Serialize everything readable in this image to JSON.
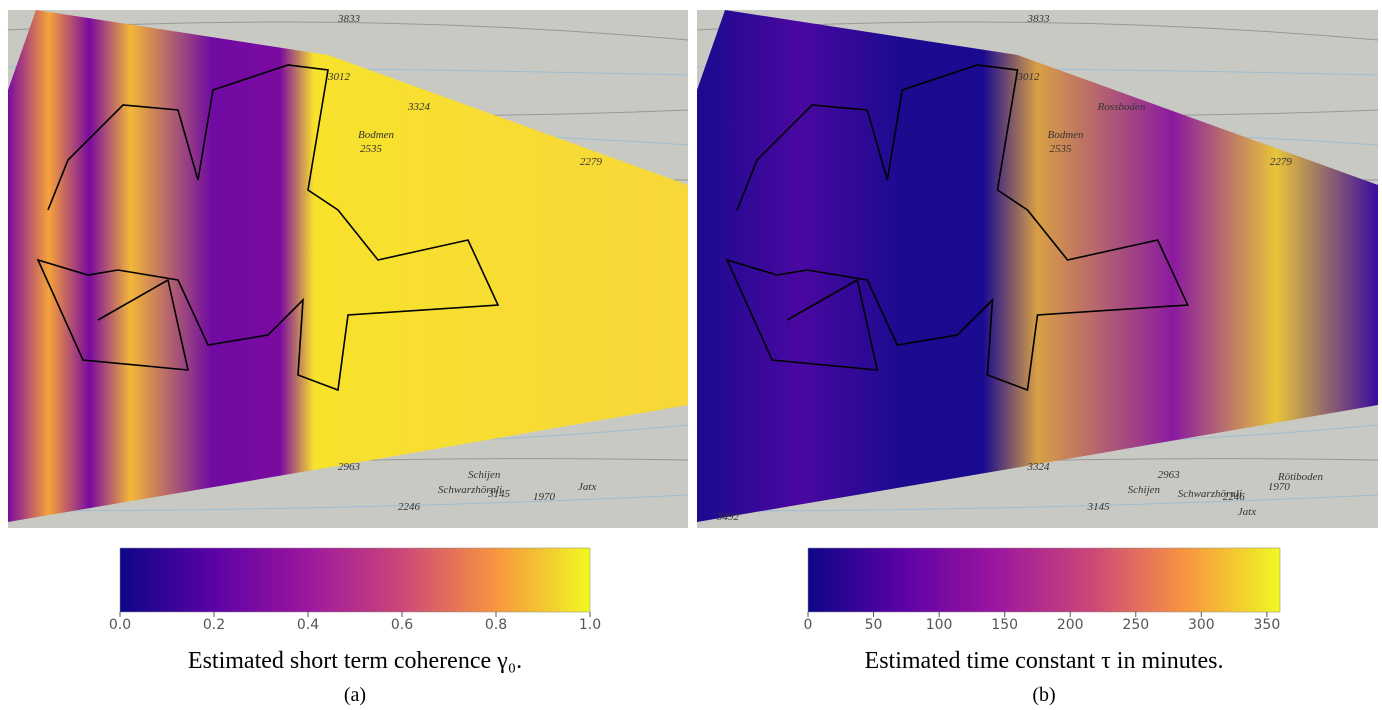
{
  "panels": [
    {
      "label": "(a)",
      "caption": "Estimated short term coherence γ₀.",
      "colorbar": {
        "lim": [
          0,
          1
        ],
        "ticks": [
          {
            "value": 0,
            "label": "0.0"
          },
          0.2,
          0.4,
          0.6,
          0.8,
          {
            "value": 1,
            "label": "1.0"
          }
        ]
      },
      "map_labels": [
        "3833",
        "3012",
        "Bodmen",
        "2535",
        "2279",
        "3324",
        "2963",
        "Schijen",
        "Schwarzhörnli",
        "3145",
        "2246",
        "1970",
        "Jatx"
      ]
    },
    {
      "label": "(b)",
      "caption": "Estimated time constant τ in minutes.",
      "colorbar": {
        "lim": [
          0,
          360
        ],
        "ticks": [
          0,
          50,
          100,
          150,
          200,
          250,
          300,
          350
        ]
      },
      "map_labels": [
        "3833",
        "3012",
        "Bodmen",
        "2535",
        "2279",
        "Rossboden",
        "3324",
        "2963",
        "Schijen",
        "Schwarzhörnli",
        "3145",
        "2246",
        "1970",
        "Rötiboden",
        "Jatx",
        "3492"
      ]
    }
  ]
}
